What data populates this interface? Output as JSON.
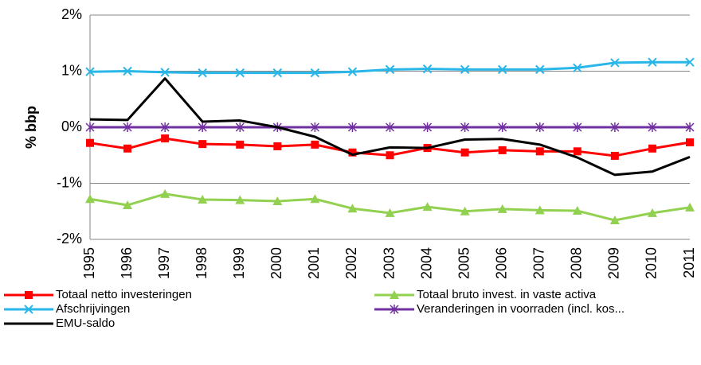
{
  "chart_data": {
    "type": "line",
    "y_label": "% bbp",
    "categories": [
      "1995",
      "1996",
      "1997",
      "1998",
      "1999",
      "2000",
      "2001",
      "2002",
      "2003",
      "2004",
      "2005",
      "2006",
      "2007",
      "2008",
      "2009",
      "2010",
      "2011"
    ],
    "ylim": [
      -2,
      2
    ],
    "yticks": [
      {
        "value": 2,
        "label": "2%"
      },
      {
        "value": 1,
        "label": "1%"
      },
      {
        "value": 0,
        "label": "0%"
      },
      {
        "value": -1,
        "label": "-1%"
      },
      {
        "value": -2,
        "label": "-2%"
      }
    ],
    "grid": true,
    "legend": "bottom",
    "series": [
      {
        "name": "Totaal netto investeringen",
        "color": "#ff0000",
        "marker": "square",
        "values": [
          -0.28,
          -0.38,
          -0.2,
          -0.3,
          -0.31,
          -0.34,
          -0.31,
          -0.45,
          -0.5,
          -0.37,
          -0.45,
          -0.41,
          -0.43,
          -0.43,
          -0.51,
          -0.38,
          -0.27
        ]
      },
      {
        "name": "Totaal bruto invest. in vaste activa",
        "color": "#92d050",
        "marker": "triangle",
        "values": [
          -1.28,
          -1.39,
          -1.19,
          -1.29,
          -1.3,
          -1.32,
          -1.28,
          -1.45,
          -1.53,
          -1.42,
          -1.5,
          -1.46,
          -1.48,
          -1.49,
          -1.66,
          -1.53,
          -1.43
        ]
      },
      {
        "name": "Afschrijvingen",
        "color": "#29b6e8",
        "marker": "x",
        "values": [
          0.99,
          1.0,
          0.98,
          0.97,
          0.97,
          0.97,
          0.97,
          0.99,
          1.03,
          1.04,
          1.03,
          1.03,
          1.03,
          1.06,
          1.15,
          1.16,
          1.16
        ]
      },
      {
        "name": "Veranderingen in voorraden (incl. kos...",
        "color": "#7030a0",
        "marker": "star",
        "values": [
          0,
          0,
          0,
          0,
          0,
          0,
          0,
          0,
          0,
          0,
          0,
          0,
          0,
          0,
          0,
          0,
          0
        ]
      },
      {
        "name": "EMU-saldo",
        "color": "#000000",
        "marker": "none",
        "values": [
          0.14,
          0.13,
          0.87,
          0.1,
          0.12,
          0,
          -0.17,
          -0.49,
          -0.36,
          -0.37,
          -0.22,
          -0.21,
          -0.31,
          -0.54,
          -0.85,
          -0.79,
          -0.53
        ]
      }
    ]
  }
}
